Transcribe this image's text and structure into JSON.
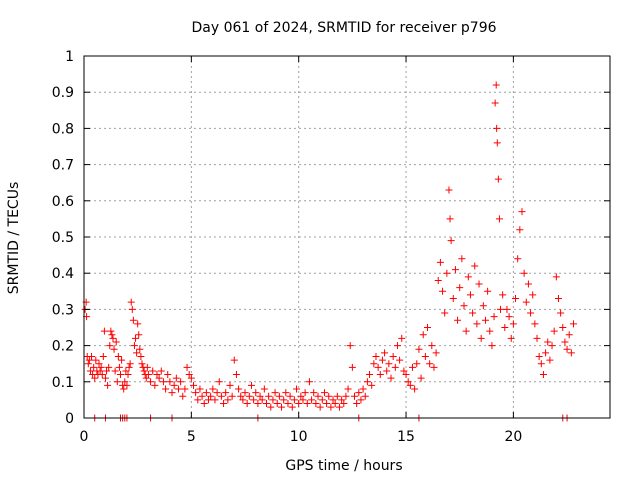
{
  "chart_data": {
    "type": "scatter",
    "title": "Day 061 of 2024, SRMTID for receiver p796",
    "xlabel": "GPS time / hours",
    "ylabel": "SRMTID / TECUs",
    "xlim": [
      0,
      24.5
    ],
    "ylim": [
      0,
      1
    ],
    "xticks": [
      0,
      5,
      10,
      15,
      20
    ],
    "xtick_labels": [
      "0",
      "5",
      "10",
      "15",
      "20"
    ],
    "yticks": [
      0,
      0.1,
      0.2,
      0.3,
      0.4,
      0.5,
      0.6,
      0.7,
      0.8,
      0.9,
      1
    ],
    "ytick_labels": [
      "0",
      "0.1",
      "0.2",
      "0.3",
      "0.4",
      "0.5",
      "0.6",
      "0.7",
      "0.8",
      "0.9",
      "1"
    ],
    "grid": true,
    "marker": "+",
    "color": "#ff0000",
    "series": [
      {
        "name": "SRMTID",
        "points": [
          [
            0.05,
            0.3
          ],
          [
            0.1,
            0.32
          ],
          [
            0.12,
            0.28
          ],
          [
            0.15,
            0.17
          ],
          [
            0.2,
            0.15
          ],
          [
            0.25,
            0.16
          ],
          [
            0.3,
            0.13
          ],
          [
            0.35,
            0.17
          ],
          [
            0.4,
            0.12
          ],
          [
            0.45,
            0.14
          ],
          [
            0.5,
            0.11
          ],
          [
            0.55,
            0.16
          ],
          [
            0.6,
            0.13
          ],
          [
            0.65,
            0.12
          ],
          [
            0.7,
            0.15
          ],
          [
            0.75,
            0.13
          ],
          [
            0.8,
            0.14
          ],
          [
            0.85,
            0.12
          ],
          [
            0.9,
            0.17
          ],
          [
            0.95,
            0.24
          ],
          [
            1.0,
            0.11
          ],
          [
            1.05,
            0.13
          ],
          [
            1.1,
            0.09
          ],
          [
            1.15,
            0.14
          ],
          [
            1.2,
            0.2
          ],
          [
            1.25,
            0.24
          ],
          [
            1.3,
            0.23
          ],
          [
            1.35,
            0.22
          ],
          [
            1.4,
            0.19
          ],
          [
            1.45,
            0.13
          ],
          [
            1.5,
            0.21
          ],
          [
            1.55,
            0.1
          ],
          [
            1.6,
            0.17
          ],
          [
            1.65,
            0.14
          ],
          [
            1.7,
            0.12
          ],
          [
            1.75,
            0.16
          ],
          [
            1.8,
            0.09
          ],
          [
            1.85,
            0.08
          ],
          [
            1.9,
            0.1
          ],
          [
            1.95,
            0.13
          ],
          [
            2.0,
            0.09
          ],
          [
            2.05,
            0.12
          ],
          [
            2.1,
            0.14
          ],
          [
            2.15,
            0.15
          ],
          [
            2.2,
            0.32
          ],
          [
            2.25,
            0.3
          ],
          [
            2.3,
            0.27
          ],
          [
            2.35,
            0.2
          ],
          [
            2.4,
            0.22
          ],
          [
            2.45,
            0.18
          ],
          [
            2.5,
            0.26
          ],
          [
            2.55,
            0.23
          ],
          [
            2.6,
            0.19
          ],
          [
            2.65,
            0.17
          ],
          [
            2.7,
            0.15
          ],
          [
            2.75,
            0.14
          ],
          [
            2.8,
            0.13
          ],
          [
            2.85,
            0.12
          ],
          [
            2.9,
            0.11
          ],
          [
            2.95,
            0.14
          ],
          [
            3.0,
            0.12
          ],
          [
            3.1,
            0.1
          ],
          [
            3.2,
            0.13
          ],
          [
            3.3,
            0.09
          ],
          [
            3.4,
            0.12
          ],
          [
            3.5,
            0.11
          ],
          [
            3.6,
            0.13
          ],
          [
            3.7,
            0.1
          ],
          [
            3.8,
            0.08
          ],
          [
            3.9,
            0.12
          ],
          [
            4.0,
            0.1
          ],
          [
            4.1,
            0.07
          ],
          [
            4.2,
            0.09
          ],
          [
            4.3,
            0.11
          ],
          [
            4.4,
            0.08
          ],
          [
            4.5,
            0.1
          ],
          [
            4.6,
            0.06
          ],
          [
            4.7,
            0.08
          ],
          [
            4.8,
            0.14
          ],
          [
            4.9,
            0.12
          ],
          [
            5.0,
            0.11
          ],
          [
            5.1,
            0.09
          ],
          [
            5.2,
            0.07
          ],
          [
            5.3,
            0.05
          ],
          [
            5.4,
            0.08
          ],
          [
            5.5,
            0.06
          ],
          [
            5.6,
            0.04
          ],
          [
            5.7,
            0.07
          ],
          [
            5.8,
            0.05
          ],
          [
            5.9,
            0.06
          ],
          [
            6.0,
            0.08
          ],
          [
            6.1,
            0.05
          ],
          [
            6.2,
            0.07
          ],
          [
            6.3,
            0.1
          ],
          [
            6.4,
            0.06
          ],
          [
            6.5,
            0.04
          ],
          [
            6.6,
            0.07
          ],
          [
            6.7,
            0.05
          ],
          [
            6.8,
            0.09
          ],
          [
            6.9,
            0.06
          ],
          [
            7.0,
            0.16
          ],
          [
            7.1,
            0.12
          ],
          [
            7.2,
            0.08
          ],
          [
            7.3,
            0.06
          ],
          [
            7.4,
            0.05
          ],
          [
            7.5,
            0.07
          ],
          [
            7.6,
            0.04
          ],
          [
            7.7,
            0.06
          ],
          [
            7.8,
            0.09
          ],
          [
            7.9,
            0.05
          ],
          [
            8.0,
            0.07
          ],
          [
            8.1,
            0.04
          ],
          [
            8.2,
            0.06
          ],
          [
            8.3,
            0.05
          ],
          [
            8.4,
            0.08
          ],
          [
            8.5,
            0.04
          ],
          [
            8.6,
            0.06
          ],
          [
            8.7,
            0.03
          ],
          [
            8.8,
            0.05
          ],
          [
            8.9,
            0.07
          ],
          [
            9.0,
            0.04
          ],
          [
            9.1,
            0.06
          ],
          [
            9.2,
            0.03
          ],
          [
            9.3,
            0.05
          ],
          [
            9.4,
            0.07
          ],
          [
            9.5,
            0.04
          ],
          [
            9.6,
            0.06
          ],
          [
            9.7,
            0.03
          ],
          [
            9.8,
            0.05
          ],
          [
            9.9,
            0.08
          ],
          [
            10.0,
            0.04
          ],
          [
            10.1,
            0.06
          ],
          [
            10.2,
            0.05
          ],
          [
            10.3,
            0.07
          ],
          [
            10.4,
            0.04
          ],
          [
            10.5,
            0.1
          ],
          [
            10.6,
            0.05
          ],
          [
            10.7,
            0.07
          ],
          [
            10.8,
            0.04
          ],
          [
            10.9,
            0.06
          ],
          [
            11.0,
            0.03
          ],
          [
            11.1,
            0.05
          ],
          [
            11.2,
            0.07
          ],
          [
            11.3,
            0.04
          ],
          [
            11.4,
            0.06
          ],
          [
            11.5,
            0.03
          ],
          [
            11.6,
            0.05
          ],
          [
            11.7,
            0.04
          ],
          [
            11.8,
            0.06
          ],
          [
            11.9,
            0.03
          ],
          [
            12.0,
            0.05
          ],
          [
            12.1,
            0.04
          ],
          [
            12.2,
            0.06
          ],
          [
            12.3,
            0.08
          ],
          [
            12.4,
            0.2
          ],
          [
            12.5,
            0.14
          ],
          [
            12.6,
            0.06
          ],
          [
            12.7,
            0.04
          ],
          [
            12.8,
            0.07
          ],
          [
            12.9,
            0.05
          ],
          [
            13.0,
            0.08
          ],
          [
            13.1,
            0.06
          ],
          [
            13.2,
            0.1
          ],
          [
            13.3,
            0.12
          ],
          [
            13.4,
            0.09
          ],
          [
            13.5,
            0.15
          ],
          [
            13.6,
            0.17
          ],
          [
            13.7,
            0.14
          ],
          [
            13.8,
            0.12
          ],
          [
            13.9,
            0.16
          ],
          [
            14.0,
            0.18
          ],
          [
            14.1,
            0.13
          ],
          [
            14.2,
            0.15
          ],
          [
            14.3,
            0.11
          ],
          [
            14.4,
            0.17
          ],
          [
            14.5,
            0.14
          ],
          [
            14.6,
            0.2
          ],
          [
            14.7,
            0.16
          ],
          [
            14.8,
            0.22
          ],
          [
            14.9,
            0.13
          ],
          [
            15.0,
            0.12
          ],
          [
            15.1,
            0.1
          ],
          [
            15.2,
            0.09
          ],
          [
            15.3,
            0.14
          ],
          [
            15.4,
            0.08
          ],
          [
            15.5,
            0.15
          ],
          [
            15.6,
            0.19
          ],
          [
            15.7,
            0.11
          ],
          [
            15.8,
            0.23
          ],
          [
            15.9,
            0.17
          ],
          [
            16.0,
            0.25
          ],
          [
            16.1,
            0.15
          ],
          [
            16.2,
            0.2
          ],
          [
            16.3,
            0.14
          ],
          [
            16.4,
            0.18
          ],
          [
            16.5,
            0.38
          ],
          [
            16.6,
            0.43
          ],
          [
            16.7,
            0.35
          ],
          [
            16.8,
            0.29
          ],
          [
            16.9,
            0.4
          ],
          [
            17.0,
            0.63
          ],
          [
            17.05,
            0.55
          ],
          [
            17.1,
            0.49
          ],
          [
            17.2,
            0.33
          ],
          [
            17.3,
            0.41
          ],
          [
            17.4,
            0.27
          ],
          [
            17.5,
            0.36
          ],
          [
            17.6,
            0.44
          ],
          [
            17.7,
            0.31
          ],
          [
            17.8,
            0.24
          ],
          [
            17.9,
            0.39
          ],
          [
            18.0,
            0.34
          ],
          [
            18.1,
            0.29
          ],
          [
            18.2,
            0.42
          ],
          [
            18.3,
            0.26
          ],
          [
            18.4,
            0.37
          ],
          [
            18.5,
            0.22
          ],
          [
            18.6,
            0.31
          ],
          [
            18.7,
            0.27
          ],
          [
            18.8,
            0.35
          ],
          [
            18.9,
            0.24
          ],
          [
            19.0,
            0.2
          ],
          [
            19.1,
            0.28
          ],
          [
            19.15,
            0.87
          ],
          [
            19.2,
            0.92
          ],
          [
            19.22,
            0.8
          ],
          [
            19.25,
            0.76
          ],
          [
            19.3,
            0.66
          ],
          [
            19.35,
            0.55
          ],
          [
            19.4,
            0.3
          ],
          [
            19.5,
            0.34
          ],
          [
            19.6,
            0.25
          ],
          [
            19.7,
            0.3
          ],
          [
            19.8,
            0.28
          ],
          [
            19.9,
            0.22
          ],
          [
            20.0,
            0.26
          ],
          [
            20.1,
            0.33
          ],
          [
            20.2,
            0.44
          ],
          [
            20.3,
            0.52
          ],
          [
            20.4,
            0.57
          ],
          [
            20.5,
            0.4
          ],
          [
            20.6,
            0.32
          ],
          [
            20.7,
            0.37
          ],
          [
            20.8,
            0.29
          ],
          [
            20.9,
            0.34
          ],
          [
            21.0,
            0.26
          ],
          [
            21.1,
            0.22
          ],
          [
            21.2,
            0.17
          ],
          [
            21.3,
            0.15
          ],
          [
            21.4,
            0.12
          ],
          [
            21.5,
            0.18
          ],
          [
            21.6,
            0.21
          ],
          [
            21.7,
            0.16
          ],
          [
            21.8,
            0.2
          ],
          [
            21.9,
            0.24
          ],
          [
            22.0,
            0.39
          ],
          [
            22.1,
            0.33
          ],
          [
            22.2,
            0.29
          ],
          [
            22.3,
            0.25
          ],
          [
            22.4,
            0.21
          ],
          [
            22.5,
            0.19
          ],
          [
            22.6,
            0.23
          ],
          [
            22.7,
            0.18
          ],
          [
            22.8,
            0.26
          ],
          [
            0.5,
            0.0
          ],
          [
            1.0,
            0.0
          ],
          [
            1.7,
            0.0
          ],
          [
            1.8,
            0.0
          ],
          [
            1.9,
            0.0
          ],
          [
            2.0,
            0.0
          ],
          [
            3.1,
            0.0
          ],
          [
            4.1,
            0.0
          ],
          [
            8.1,
            0.0
          ],
          [
            12.8,
            0.0
          ],
          [
            15.6,
            0.0
          ],
          [
            22.3,
            0.0
          ],
          [
            22.5,
            0.0
          ]
        ]
      }
    ]
  }
}
